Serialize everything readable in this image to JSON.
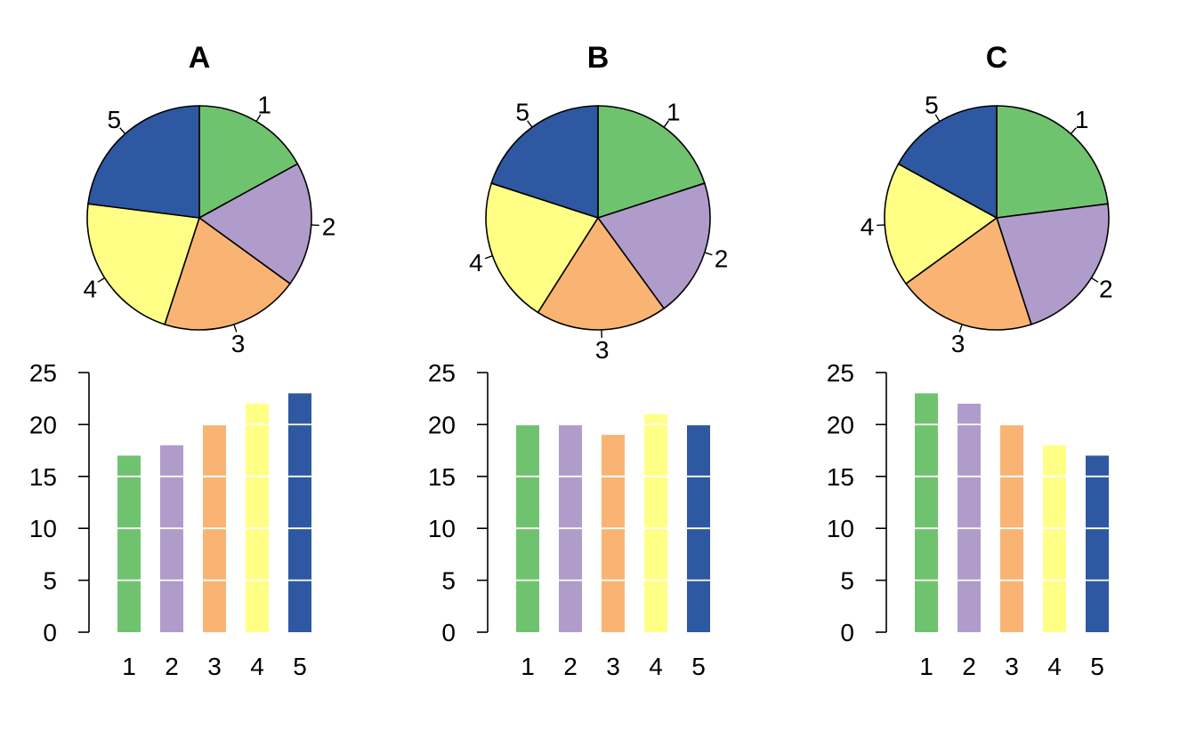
{
  "chart_data": [
    {
      "type": "pie",
      "title": "A",
      "categories": [
        "1",
        "2",
        "3",
        "4",
        "5"
      ],
      "values": [
        17,
        18,
        20,
        22,
        23
      ],
      "colors": [
        "#6fc36e",
        "#af9ccb",
        "#f9b474",
        "#ffff86",
        "#2e58a2"
      ],
      "start_angle_deg": 90,
      "direction": "clockwise"
    },
    {
      "type": "pie",
      "title": "B",
      "categories": [
        "1",
        "2",
        "3",
        "4",
        "5"
      ],
      "values": [
        20,
        20,
        19,
        21,
        20
      ],
      "colors": [
        "#6fc36e",
        "#af9ccb",
        "#f9b474",
        "#ffff86",
        "#2e58a2"
      ],
      "start_angle_deg": 90,
      "direction": "clockwise"
    },
    {
      "type": "pie",
      "title": "C",
      "categories": [
        "1",
        "2",
        "3",
        "4",
        "5"
      ],
      "values": [
        23,
        22,
        20,
        18,
        17
      ],
      "colors": [
        "#6fc36e",
        "#af9ccb",
        "#f9b474",
        "#ffff86",
        "#2e58a2"
      ],
      "start_angle_deg": 90,
      "direction": "clockwise"
    },
    {
      "type": "bar",
      "categories": [
        "1",
        "2",
        "3",
        "4",
        "5"
      ],
      "values": [
        17,
        18,
        20,
        22,
        23
      ],
      "colors": [
        "#6fc36e",
        "#af9ccb",
        "#f9b474",
        "#ffff86",
        "#2e58a2"
      ],
      "ylim": [
        0,
        25
      ],
      "yticks": [
        "0",
        "5",
        "10",
        "15",
        "20",
        "25"
      ],
      "grid": "horizontal white lines over bars"
    },
    {
      "type": "bar",
      "categories": [
        "1",
        "2",
        "3",
        "4",
        "5"
      ],
      "values": [
        20,
        20,
        19,
        21,
        20
      ],
      "colors": [
        "#6fc36e",
        "#af9ccb",
        "#f9b474",
        "#ffff86",
        "#2e58a2"
      ],
      "ylim": [
        0,
        25
      ],
      "yticks": [
        "0",
        "5",
        "10",
        "15",
        "20",
        "25"
      ],
      "grid": "horizontal white lines over bars"
    },
    {
      "type": "bar",
      "categories": [
        "1",
        "2",
        "3",
        "4",
        "5"
      ],
      "values": [
        23,
        22,
        20,
        18,
        17
      ],
      "colors": [
        "#6fc36e",
        "#af9ccb",
        "#f9b474",
        "#ffff86",
        "#2e58a2"
      ],
      "ylim": [
        0,
        25
      ],
      "yticks": [
        "0",
        "5",
        "10",
        "15",
        "20",
        "25"
      ],
      "grid": "horizontal white lines over bars"
    }
  ]
}
